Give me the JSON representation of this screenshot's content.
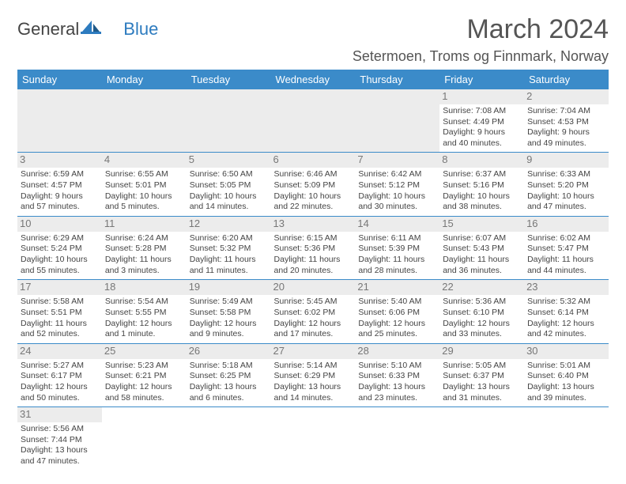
{
  "brand": {
    "textA": "General",
    "textB": "Blue"
  },
  "header": {
    "month": "March 2024",
    "location": "Setermoen, Troms og Finnmark, Norway"
  },
  "colors": {
    "headerBar": "#3b8bc9",
    "dayStripe": "#ececec"
  },
  "weekdays": [
    "Sunday",
    "Monday",
    "Tuesday",
    "Wednesday",
    "Thursday",
    "Friday",
    "Saturday"
  ],
  "weeks": [
    [
      null,
      null,
      null,
      null,
      null,
      {
        "n": "1",
        "sunrise": "Sunrise: 7:08 AM",
        "sunset": "Sunset: 4:49 PM",
        "day1": "Daylight: 9 hours",
        "day2": "and 40 minutes."
      },
      {
        "n": "2",
        "sunrise": "Sunrise: 7:04 AM",
        "sunset": "Sunset: 4:53 PM",
        "day1": "Daylight: 9 hours",
        "day2": "and 49 minutes."
      }
    ],
    [
      {
        "n": "3",
        "sunrise": "Sunrise: 6:59 AM",
        "sunset": "Sunset: 4:57 PM",
        "day1": "Daylight: 9 hours",
        "day2": "and 57 minutes."
      },
      {
        "n": "4",
        "sunrise": "Sunrise: 6:55 AM",
        "sunset": "Sunset: 5:01 PM",
        "day1": "Daylight: 10 hours",
        "day2": "and 5 minutes."
      },
      {
        "n": "5",
        "sunrise": "Sunrise: 6:50 AM",
        "sunset": "Sunset: 5:05 PM",
        "day1": "Daylight: 10 hours",
        "day2": "and 14 minutes."
      },
      {
        "n": "6",
        "sunrise": "Sunrise: 6:46 AM",
        "sunset": "Sunset: 5:09 PM",
        "day1": "Daylight: 10 hours",
        "day2": "and 22 minutes."
      },
      {
        "n": "7",
        "sunrise": "Sunrise: 6:42 AM",
        "sunset": "Sunset: 5:12 PM",
        "day1": "Daylight: 10 hours",
        "day2": "and 30 minutes."
      },
      {
        "n": "8",
        "sunrise": "Sunrise: 6:37 AM",
        "sunset": "Sunset: 5:16 PM",
        "day1": "Daylight: 10 hours",
        "day2": "and 38 minutes."
      },
      {
        "n": "9",
        "sunrise": "Sunrise: 6:33 AM",
        "sunset": "Sunset: 5:20 PM",
        "day1": "Daylight: 10 hours",
        "day2": "and 47 minutes."
      }
    ],
    [
      {
        "n": "10",
        "sunrise": "Sunrise: 6:29 AM",
        "sunset": "Sunset: 5:24 PM",
        "day1": "Daylight: 10 hours",
        "day2": "and 55 minutes."
      },
      {
        "n": "11",
        "sunrise": "Sunrise: 6:24 AM",
        "sunset": "Sunset: 5:28 PM",
        "day1": "Daylight: 11 hours",
        "day2": "and 3 minutes."
      },
      {
        "n": "12",
        "sunrise": "Sunrise: 6:20 AM",
        "sunset": "Sunset: 5:32 PM",
        "day1": "Daylight: 11 hours",
        "day2": "and 11 minutes."
      },
      {
        "n": "13",
        "sunrise": "Sunrise: 6:15 AM",
        "sunset": "Sunset: 5:36 PM",
        "day1": "Daylight: 11 hours",
        "day2": "and 20 minutes."
      },
      {
        "n": "14",
        "sunrise": "Sunrise: 6:11 AM",
        "sunset": "Sunset: 5:39 PM",
        "day1": "Daylight: 11 hours",
        "day2": "and 28 minutes."
      },
      {
        "n": "15",
        "sunrise": "Sunrise: 6:07 AM",
        "sunset": "Sunset: 5:43 PM",
        "day1": "Daylight: 11 hours",
        "day2": "and 36 minutes."
      },
      {
        "n": "16",
        "sunrise": "Sunrise: 6:02 AM",
        "sunset": "Sunset: 5:47 PM",
        "day1": "Daylight: 11 hours",
        "day2": "and 44 minutes."
      }
    ],
    [
      {
        "n": "17",
        "sunrise": "Sunrise: 5:58 AM",
        "sunset": "Sunset: 5:51 PM",
        "day1": "Daylight: 11 hours",
        "day2": "and 52 minutes."
      },
      {
        "n": "18",
        "sunrise": "Sunrise: 5:54 AM",
        "sunset": "Sunset: 5:55 PM",
        "day1": "Daylight: 12 hours",
        "day2": "and 1 minute."
      },
      {
        "n": "19",
        "sunrise": "Sunrise: 5:49 AM",
        "sunset": "Sunset: 5:58 PM",
        "day1": "Daylight: 12 hours",
        "day2": "and 9 minutes."
      },
      {
        "n": "20",
        "sunrise": "Sunrise: 5:45 AM",
        "sunset": "Sunset: 6:02 PM",
        "day1": "Daylight: 12 hours",
        "day2": "and 17 minutes."
      },
      {
        "n": "21",
        "sunrise": "Sunrise: 5:40 AM",
        "sunset": "Sunset: 6:06 PM",
        "day1": "Daylight: 12 hours",
        "day2": "and 25 minutes."
      },
      {
        "n": "22",
        "sunrise": "Sunrise: 5:36 AM",
        "sunset": "Sunset: 6:10 PM",
        "day1": "Daylight: 12 hours",
        "day2": "and 33 minutes."
      },
      {
        "n": "23",
        "sunrise": "Sunrise: 5:32 AM",
        "sunset": "Sunset: 6:14 PM",
        "day1": "Daylight: 12 hours",
        "day2": "and 42 minutes."
      }
    ],
    [
      {
        "n": "24",
        "sunrise": "Sunrise: 5:27 AM",
        "sunset": "Sunset: 6:17 PM",
        "day1": "Daylight: 12 hours",
        "day2": "and 50 minutes."
      },
      {
        "n": "25",
        "sunrise": "Sunrise: 5:23 AM",
        "sunset": "Sunset: 6:21 PM",
        "day1": "Daylight: 12 hours",
        "day2": "and 58 minutes."
      },
      {
        "n": "26",
        "sunrise": "Sunrise: 5:18 AM",
        "sunset": "Sunset: 6:25 PM",
        "day1": "Daylight: 13 hours",
        "day2": "and 6 minutes."
      },
      {
        "n": "27",
        "sunrise": "Sunrise: 5:14 AM",
        "sunset": "Sunset: 6:29 PM",
        "day1": "Daylight: 13 hours",
        "day2": "and 14 minutes."
      },
      {
        "n": "28",
        "sunrise": "Sunrise: 5:10 AM",
        "sunset": "Sunset: 6:33 PM",
        "day1": "Daylight: 13 hours",
        "day2": "and 23 minutes."
      },
      {
        "n": "29",
        "sunrise": "Sunrise: 5:05 AM",
        "sunset": "Sunset: 6:37 PM",
        "day1": "Daylight: 13 hours",
        "day2": "and 31 minutes."
      },
      {
        "n": "30",
        "sunrise": "Sunrise: 5:01 AM",
        "sunset": "Sunset: 6:40 PM",
        "day1": "Daylight: 13 hours",
        "day2": "and 39 minutes."
      }
    ],
    [
      {
        "n": "31",
        "sunrise": "Sunrise: 5:56 AM",
        "sunset": "Sunset: 7:44 PM",
        "day1": "Daylight: 13 hours",
        "day2": "and 47 minutes."
      },
      null,
      null,
      null,
      null,
      null,
      null
    ]
  ]
}
